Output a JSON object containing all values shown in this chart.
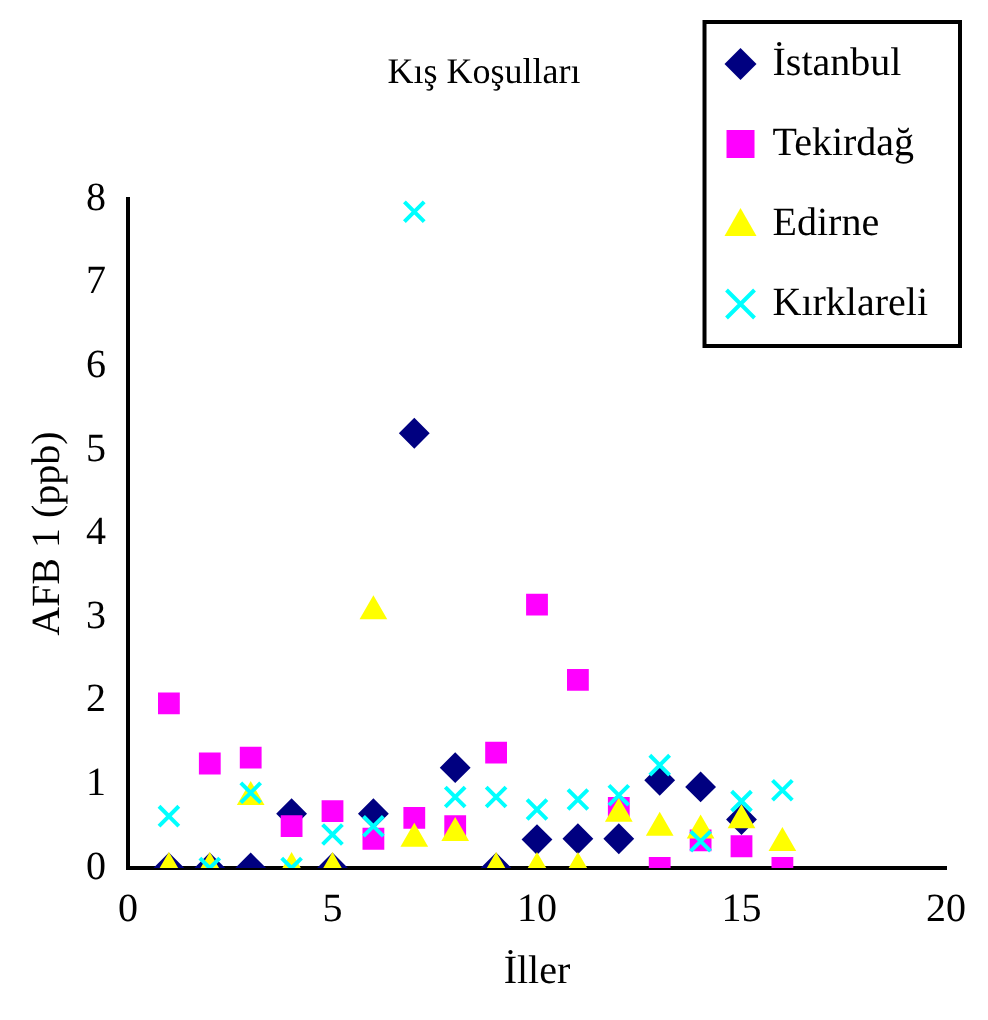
{
  "chart_data": {
    "type": "scatter",
    "title": "Kış Koşulları",
    "xlabel": "İller",
    "ylabel": "AFB 1 (ppb)",
    "x": [
      1,
      2,
      3,
      4,
      5,
      6,
      7,
      8,
      9,
      10,
      11,
      12,
      13,
      14,
      15,
      16
    ],
    "xlim": [
      0,
      20
    ],
    "xticks": [
      0,
      5,
      10,
      15,
      20
    ],
    "ylim": [
      0,
      8
    ],
    "yticks": [
      0,
      1,
      2,
      3,
      4,
      5,
      6,
      7,
      8
    ],
    "grid": false,
    "legend": "top right",
    "series": [
      {
        "name": "İstanbul",
        "color": "#000080",
        "marker": "diamond",
        "values": [
          0,
          0,
          0,
          0.65,
          0,
          0.65,
          5.2,
          1.2,
          0,
          0.34,
          0.35,
          0.35,
          1.05,
          0.97,
          0.58,
          null
        ]
      },
      {
        "name": "Tekirdağ",
        "color": "#ff00ff",
        "marker": "square",
        "values": [
          1.97,
          1.25,
          1.32,
          0.5,
          0.68,
          0.35,
          0.6,
          0.5,
          1.38,
          3.15,
          2.25,
          0.72,
          0,
          0.33,
          0.26,
          0
        ]
      },
      {
        "name": "Edirne",
        "color": "#ffff00",
        "marker": "triangle",
        "values": [
          0,
          0,
          0.85,
          0,
          0,
          3.07,
          0.35,
          0.42,
          0,
          0,
          0,
          0.65,
          0.48,
          0.45,
          0.57,
          0.3
        ]
      },
      {
        "name": "Kırklareli",
        "color": "#00ffff",
        "marker": "cross",
        "values": [
          0.62,
          0,
          0.9,
          0,
          0.4,
          0.5,
          7.85,
          0.85,
          0.85,
          0.7,
          0.82,
          0.87,
          1.23,
          0.32,
          0.8,
          0.93
        ]
      }
    ]
  }
}
